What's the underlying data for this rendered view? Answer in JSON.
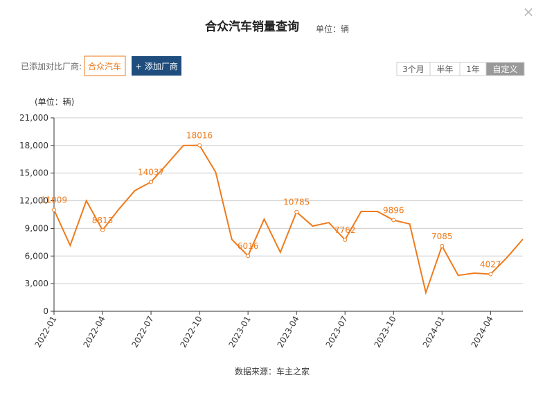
{
  "header": {
    "title": "合众汽车销量查询",
    "unit": "单位：辆",
    "close": "×"
  },
  "compare": {
    "label": "已添加对比厂商:",
    "selected": "合众汽车",
    "add": "+ 添加厂商"
  },
  "range_buttons": {
    "items": [
      "3个月",
      "半年",
      "1年",
      "自定义"
    ],
    "active": 3
  },
  "footer": "数据来源：车主之家",
  "chart_data": {
    "type": "line",
    "y_label": "(单位：辆)",
    "categories": [
      "2022-01",
      null,
      null,
      "2022-04",
      null,
      null,
      "2022-07",
      null,
      null,
      "2022-10",
      null,
      null,
      "2023-01",
      null,
      null,
      "2023-04",
      null,
      null,
      "2023-07",
      null,
      null,
      "2023-10",
      null,
      null,
      "2024-01",
      null,
      null,
      "2024-04",
      null,
      null
    ],
    "series": [
      {
        "name": "合众汽车",
        "color": "#f07a1a",
        "values": [
          11009,
          7150,
          12000,
          8813,
          11060,
          13100,
          14037,
          16000,
          18000,
          18016,
          15100,
          7800,
          6016,
          10000,
          6400,
          10785,
          9250,
          9630,
          7762,
          10840,
          10840,
          9896,
          9480,
          2030,
          7085,
          3900,
          4140,
          4027,
          5800,
          7830
        ],
        "value_labels": [
          "11009",
          null,
          null,
          "8813",
          null,
          null,
          "14037",
          null,
          null,
          "18016",
          null,
          null,
          "6016",
          null,
          null,
          "10785",
          null,
          null,
          "7762",
          null,
          null,
          "9896",
          null,
          null,
          "7085",
          null,
          null,
          "4027",
          null,
          null
        ]
      }
    ],
    "ylim": [
      0,
      21000
    ],
    "yticks": [
      0,
      {
        "value": 3000,
        "label": "3,000"
      },
      {
        "value": 6000,
        "label": "6,000"
      },
      {
        "value": 9000,
        "label": "9,000"
      },
      {
        "value": 12000,
        "label": "12,000"
      },
      {
        "value": 15000,
        "label": "15,000"
      },
      {
        "value": 18000,
        "label": "18,000"
      },
      {
        "value": 21000,
        "label": "21,000"
      }
    ],
    "grid": true
  }
}
